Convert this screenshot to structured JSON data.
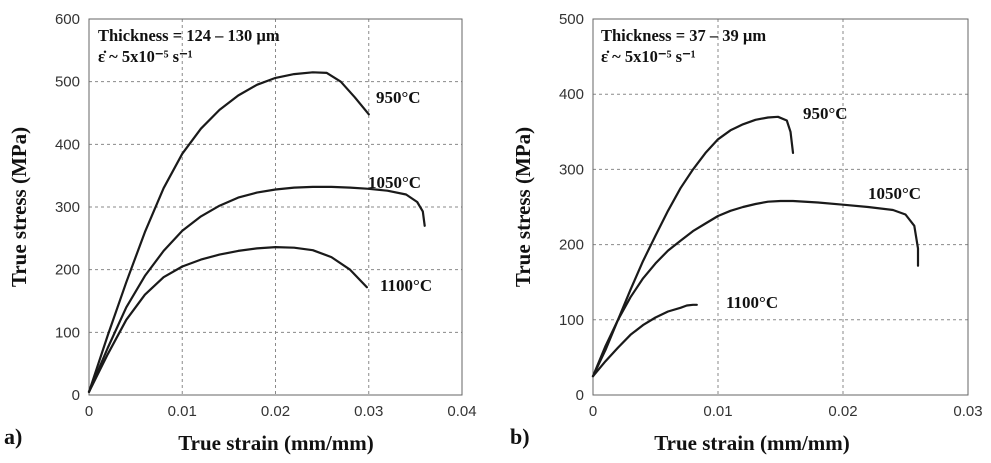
{
  "chart_data": [
    {
      "type": "line",
      "panel": "a)",
      "annotation": [
        "Thickness = 124 – 130 µm",
        "ε̇ ~ 5x10⁻⁵ s⁻¹"
      ],
      "xlabel": "True strain (mm/mm)",
      "ylabel": "True stress (MPa)",
      "xlim": [
        0,
        0.04
      ],
      "ylim": [
        0,
        600
      ],
      "xticks": [
        0,
        0.01,
        0.02,
        0.03,
        0.04
      ],
      "xtick_labels": [
        "0",
        "0.01",
        "0.02",
        "0.03",
        "0.04"
      ],
      "yticks": [
        0,
        100,
        200,
        300,
        400,
        500,
        600
      ],
      "ytick_labels": [
        "0",
        "100",
        "200",
        "300",
        "400",
        "500",
        "600"
      ],
      "grid": true,
      "series": [
        {
          "label": "950°C",
          "points": [
            [
              0,
              5
            ],
            [
              0.002,
              95
            ],
            [
              0.004,
              180
            ],
            [
              0.006,
              260
            ],
            [
              0.008,
              330
            ],
            [
              0.01,
              385
            ],
            [
              0.012,
              425
            ],
            [
              0.014,
              455
            ],
            [
              0.016,
              478
            ],
            [
              0.018,
              495
            ],
            [
              0.02,
              506
            ],
            [
              0.022,
              512
            ],
            [
              0.024,
              515
            ],
            [
              0.0255,
              514
            ],
            [
              0.027,
              500
            ],
            [
              0.0285,
              475
            ],
            [
              0.03,
              448
            ]
          ]
        },
        {
          "label": "1050°C",
          "points": [
            [
              0,
              5
            ],
            [
              0.002,
              75
            ],
            [
              0.004,
              140
            ],
            [
              0.006,
              190
            ],
            [
              0.008,
              230
            ],
            [
              0.01,
              262
            ],
            [
              0.012,
              285
            ],
            [
              0.014,
              302
            ],
            [
              0.016,
              315
            ],
            [
              0.018,
              323
            ],
            [
              0.02,
              328
            ],
            [
              0.022,
              331
            ],
            [
              0.024,
              332
            ],
            [
              0.026,
              332
            ],
            [
              0.028,
              331
            ],
            [
              0.03,
              329
            ],
            [
              0.032,
              326
            ],
            [
              0.034,
              320
            ],
            [
              0.0352,
              308
            ],
            [
              0.0358,
              293
            ],
            [
              0.036,
              270
            ]
          ]
        },
        {
          "label": "1100°C",
          "points": [
            [
              0,
              5
            ],
            [
              0.002,
              65
            ],
            [
              0.004,
              120
            ],
            [
              0.006,
              160
            ],
            [
              0.008,
              188
            ],
            [
              0.01,
              205
            ],
            [
              0.012,
              216
            ],
            [
              0.014,
              224
            ],
            [
              0.016,
              230
            ],
            [
              0.018,
              234
            ],
            [
              0.02,
              236
            ],
            [
              0.022,
              235
            ],
            [
              0.024,
              231
            ],
            [
              0.026,
              220
            ],
            [
              0.028,
              200
            ],
            [
              0.0298,
              172
            ]
          ]
        }
      ]
    },
    {
      "type": "line",
      "panel": "b)",
      "annotation": [
        "Thickness = 37 – 39 µm",
        "ε̇ ~ 5x10⁻⁵ s⁻¹"
      ],
      "xlabel": "True strain (mm/mm)",
      "ylabel": "True stress (MPa)",
      "xlim": [
        0,
        0.03
      ],
      "ylim": [
        0,
        500
      ],
      "xticks": [
        0,
        0.01,
        0.02,
        0.03
      ],
      "xtick_labels": [
        "0",
        "0.01",
        "0.02",
        "0.03"
      ],
      "yticks": [
        0,
        100,
        200,
        300,
        400,
        500
      ],
      "ytick_labels": [
        "0",
        "100",
        "200",
        "300",
        "400",
        "500"
      ],
      "grid": true,
      "series": [
        {
          "label": "950°C",
          "points": [
            [
              0,
              25
            ],
            [
              0.001,
              60
            ],
            [
              0.002,
              100
            ],
            [
              0.003,
              140
            ],
            [
              0.004,
              178
            ],
            [
              0.005,
              212
            ],
            [
              0.006,
              245
            ],
            [
              0.007,
              275
            ],
            [
              0.008,
              300
            ],
            [
              0.009,
              322
            ],
            [
              0.01,
              340
            ],
            [
              0.011,
              352
            ],
            [
              0.012,
              360
            ],
            [
              0.013,
              366
            ],
            [
              0.014,
              369
            ],
            [
              0.0148,
              370
            ],
            [
              0.0155,
              365
            ],
            [
              0.0158,
              350
            ],
            [
              0.016,
              322
            ]
          ]
        },
        {
          "label": "1050°C",
          "points": [
            [
              0,
              25
            ],
            [
              0.001,
              65
            ],
            [
              0.002,
              100
            ],
            [
              0.003,
              130
            ],
            [
              0.004,
              155
            ],
            [
              0.005,
              175
            ],
            [
              0.006,
              192
            ],
            [
              0.007,
              205
            ],
            [
              0.008,
              218
            ],
            [
              0.009,
              228
            ],
            [
              0.01,
              238
            ],
            [
              0.011,
              245
            ],
            [
              0.012,
              250
            ],
            [
              0.013,
              254
            ],
            [
              0.014,
              257
            ],
            [
              0.015,
              258
            ],
            [
              0.016,
              258
            ],
            [
              0.018,
              256
            ],
            [
              0.02,
              253
            ],
            [
              0.022,
              250
            ],
            [
              0.024,
              246
            ],
            [
              0.025,
              240
            ],
            [
              0.0257,
              225
            ],
            [
              0.026,
              195
            ],
            [
              0.026,
              172
            ]
          ]
        },
        {
          "label": "1100°C",
          "points": [
            [
              0,
              25
            ],
            [
              0.001,
              45
            ],
            [
              0.002,
              63
            ],
            [
              0.003,
              80
            ],
            [
              0.004,
              93
            ],
            [
              0.005,
              103
            ],
            [
              0.006,
              111
            ],
            [
              0.007,
              116
            ],
            [
              0.0075,
              119
            ],
            [
              0.008,
              120
            ],
            [
              0.0083,
              120
            ]
          ]
        }
      ]
    }
  ]
}
